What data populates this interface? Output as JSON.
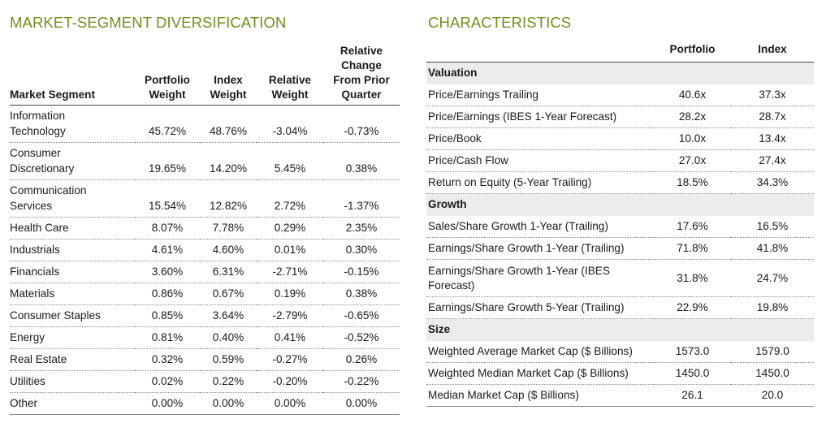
{
  "segmentSection": {
    "title": "MARKET-SEGMENT DIVERSIFICATION",
    "headers": {
      "segment": "Market Segment",
      "portfolio": [
        "Portfolio",
        "Weight"
      ],
      "index": [
        "Index",
        "Weight"
      ],
      "relative": [
        "Relative",
        "Weight"
      ],
      "change": [
        "Relative",
        "Change",
        "From Prior",
        "Quarter"
      ]
    },
    "rows": [
      {
        "name": [
          "Information",
          "Technology"
        ],
        "portfolio": "45.72%",
        "index": "48.76%",
        "relative": "-3.04%",
        "change": "-0.73%"
      },
      {
        "name": [
          "Consumer",
          "Discretionary"
        ],
        "portfolio": "19.65%",
        "index": "14.20%",
        "relative": "5.45%",
        "change": "0.38%"
      },
      {
        "name": [
          "Communication",
          "Services"
        ],
        "portfolio": "15.54%",
        "index": "12.82%",
        "relative": "2.72%",
        "change": "-1.37%"
      },
      {
        "name": [
          "Health Care"
        ],
        "portfolio": "8.07%",
        "index": "7.78%",
        "relative": "0.29%",
        "change": "2.35%"
      },
      {
        "name": [
          "Industrials"
        ],
        "portfolio": "4.61%",
        "index": "4.60%",
        "relative": "0.01%",
        "change": "0.30%"
      },
      {
        "name": [
          "Financials"
        ],
        "portfolio": "3.60%",
        "index": "6.31%",
        "relative": "-2.71%",
        "change": "-0.15%"
      },
      {
        "name": [
          "Materials"
        ],
        "portfolio": "0.86%",
        "index": "0.67%",
        "relative": "0.19%",
        "change": "0.38%"
      },
      {
        "name": [
          "Consumer Staples"
        ],
        "portfolio": "0.85%",
        "index": "3.64%",
        "relative": "-2.79%",
        "change": "-0.65%"
      },
      {
        "name": [
          "Energy"
        ],
        "portfolio": "0.81%",
        "index": "0.40%",
        "relative": "0.41%",
        "change": "-0.52%"
      },
      {
        "name": [
          "Real Estate"
        ],
        "portfolio": "0.32%",
        "index": "0.59%",
        "relative": "-0.27%",
        "change": "0.26%"
      },
      {
        "name": [
          "Utilities"
        ],
        "portfolio": "0.02%",
        "index": "0.22%",
        "relative": "-0.20%",
        "change": "-0.22%"
      },
      {
        "name": [
          "Other"
        ],
        "portfolio": "0.00%",
        "index": "0.00%",
        "relative": "0.00%",
        "change": "0.00%"
      }
    ]
  },
  "characteristicsSection": {
    "title": "CHARACTERISTICS",
    "headers": {
      "portfolio": "Portfolio",
      "index": "Index"
    },
    "groups": [
      {
        "label": "Valuation",
        "rows": [
          {
            "label": [
              "Price/Earnings Trailing"
            ],
            "portfolio": "40.6x",
            "index": "37.3x"
          },
          {
            "label": [
              "Price/Earnings (IBES 1-Year Forecast)"
            ],
            "portfolio": "28.2x",
            "index": "28.7x"
          },
          {
            "label": [
              "Price/Book"
            ],
            "portfolio": "10.0x",
            "index": "13.4x"
          },
          {
            "label": [
              "Price/Cash Flow"
            ],
            "portfolio": "27.0x",
            "index": "27.4x"
          },
          {
            "label": [
              "Return on Equity (5-Year Trailing)"
            ],
            "portfolio": "18.5%",
            "index": "34.3%"
          }
        ]
      },
      {
        "label": "Growth",
        "rows": [
          {
            "label": [
              "Sales/Share Growth 1-Year (Trailing)"
            ],
            "portfolio": "17.6%",
            "index": "16.5%"
          },
          {
            "label": [
              "Earnings/Share Growth 1-Year (Trailing)"
            ],
            "portfolio": "71.8%",
            "index": "41.8%"
          },
          {
            "label": [
              "Earnings/Share Growth 1-Year (IBES",
              "Forecast)"
            ],
            "portfolio": "31.8%",
            "index": "24.7%"
          },
          {
            "label": [
              "Earnings/Share Growth 5-Year (Trailing)"
            ],
            "portfolio": "22.9%",
            "index": "19.8%"
          }
        ]
      },
      {
        "label": "Size",
        "rows": [
          {
            "label": [
              "Weighted Average Market Cap ($ Billions)"
            ],
            "portfolio": "1573.0",
            "index": "1579.0"
          },
          {
            "label": [
              "Weighted Median Market Cap ($ Billions)"
            ],
            "portfolio": "1450.0",
            "index": "1450.0"
          },
          {
            "label": [
              "Median Market Cap ($ Billions)"
            ],
            "portfolio": "26.1",
            "index": "20.0"
          }
        ]
      }
    ]
  }
}
